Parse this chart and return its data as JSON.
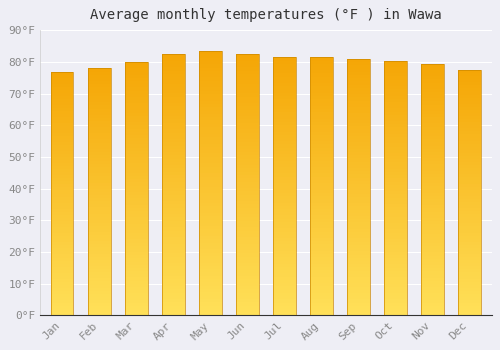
{
  "title": "Average monthly temperatures (°F ) in Wawa",
  "months": [
    "Jan",
    "Feb",
    "Mar",
    "Apr",
    "May",
    "Jun",
    "Jul",
    "Aug",
    "Sep",
    "Oct",
    "Nov",
    "Dec"
  ],
  "values": [
    77,
    78,
    80,
    82.5,
    83.5,
    82.5,
    81.5,
    81.5,
    81,
    80.5,
    79.5,
    77.5
  ],
  "ylim": [
    0,
    90
  ],
  "yticks": [
    0,
    10,
    20,
    30,
    40,
    50,
    60,
    70,
    80,
    90
  ],
  "ytick_labels": [
    "0°F",
    "10°F",
    "20°F",
    "30°F",
    "40°F",
    "50°F",
    "60°F",
    "70°F",
    "80°F",
    "90°F"
  ],
  "bar_color_top": "#F5A800",
  "bar_color_bottom": "#FFD966",
  "bar_outline_color": "#CC8800",
  "background_color": "#eeeef5",
  "plot_bg_color": "#eeeef5",
  "grid_color": "#ffffff",
  "title_fontsize": 10,
  "tick_fontsize": 8,
  "bar_width": 0.6,
  "figsize": [
    5.0,
    3.5
  ],
  "dpi": 100
}
